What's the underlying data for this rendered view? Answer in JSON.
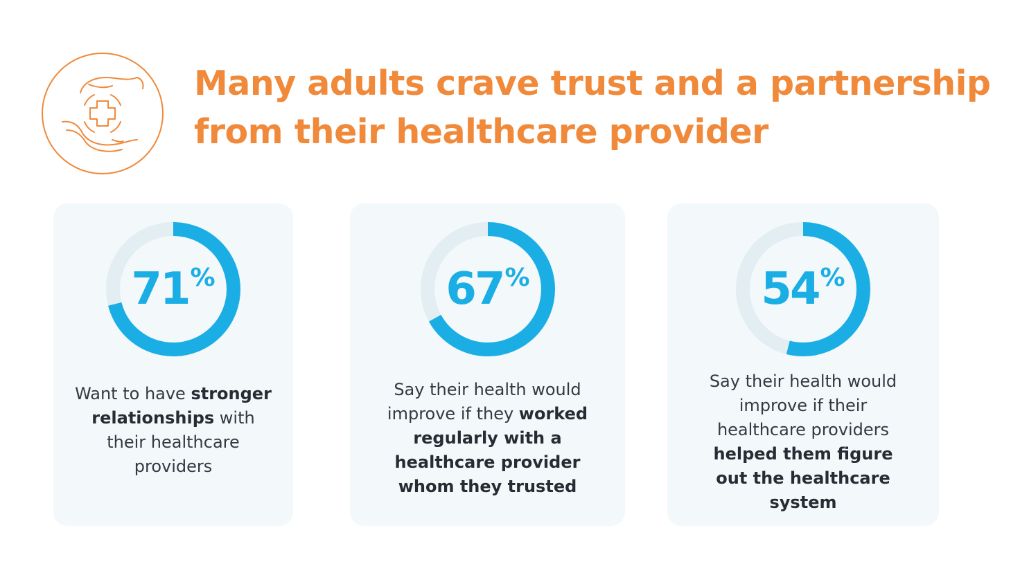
{
  "header": {
    "icon": "hands-medical-cross-icon",
    "title_line1": "Many adults crave trust and a partnership",
    "title_line2": "from their healthcare provider"
  },
  "colors": {
    "accent": "#F0893A",
    "ring": "#1AAEE5",
    "ring_track": "#E2EEF2",
    "card_bg": "#F3F8FA",
    "text": "#333942"
  },
  "chart_data": {
    "type": "donut",
    "unit": "%",
    "items": [
      {
        "value": 71,
        "label": "71",
        "description_parts": [
          "Want to have ",
          "stronger relationships",
          " with their healthcare providers"
        ]
      },
      {
        "value": 67,
        "label": "67",
        "description_parts": [
          "Say their health would improve if they ",
          "worked regularly with a healthcare provider whom they trusted",
          ""
        ]
      },
      {
        "value": 54,
        "label": "54",
        "description_parts": [
          "Say their health would improve if their healthcare providers ",
          "helped them figure out the healthcare system",
          ""
        ]
      }
    ]
  }
}
